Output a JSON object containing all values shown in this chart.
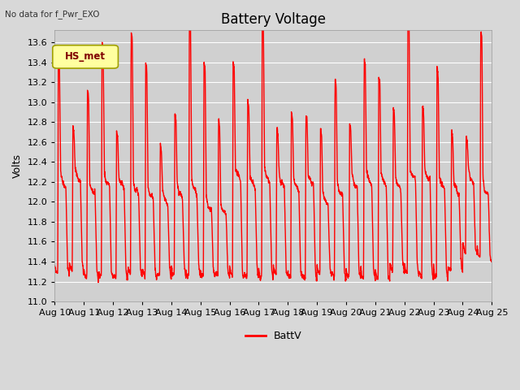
{
  "title": "Battery Voltage",
  "top_left_text": "No data for f_Pwr_EXO",
  "ylabel": "Volts",
  "legend_label": "BattV",
  "line_color": "#ff0000",
  "fig_bg_color": "#d8d8d8",
  "plot_bg_color": "#d0d0d0",
  "ylim": [
    11.0,
    13.72
  ],
  "yticks": [
    11.0,
    11.2,
    11.4,
    11.6,
    11.8,
    12.0,
    12.2,
    12.4,
    12.6,
    12.8,
    13.0,
    13.2,
    13.4,
    13.6
  ],
  "xtick_labels": [
    "Aug 10",
    "Aug 11",
    "Aug 12",
    "Aug 13",
    "Aug 14",
    "Aug 15",
    "Aug 16",
    "Aug 17",
    "Aug 18",
    "Aug 19",
    "Aug 20",
    "Aug 21",
    "Aug 22",
    "Aug 23",
    "Aug 24",
    "Aug 25"
  ],
  "legend_box_facecolor": "#ffffa0",
  "legend_box_edgecolor": "#a0a000",
  "legend_text_color": "#800000",
  "hs_met_label": "HS_met",
  "title_fontsize": 12,
  "label_fontsize": 9,
  "tick_fontsize": 8,
  "grid_color": "#ffffff",
  "line_width": 1.0
}
